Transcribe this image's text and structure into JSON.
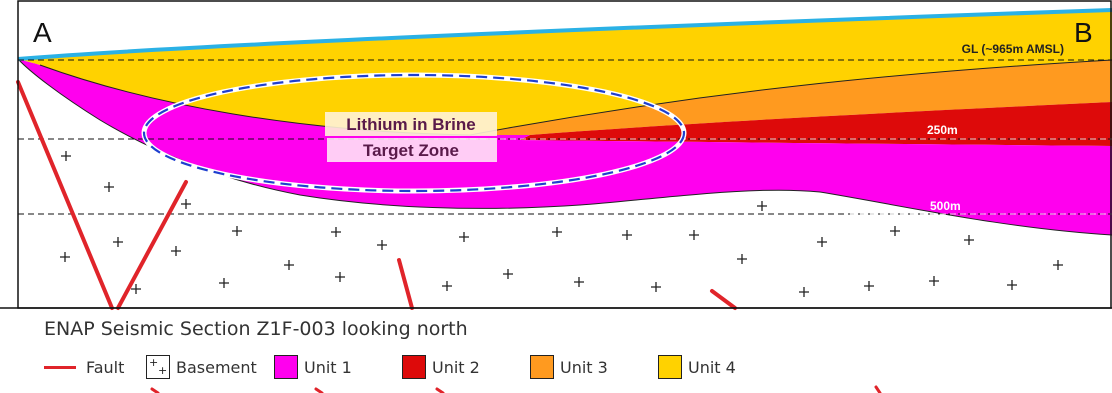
{
  "section": {
    "left_label": "A",
    "right_label": "B",
    "ground_level_label": "GL (~965m AMSL)",
    "depth_250_label": "250m",
    "depth_500_label": "500m",
    "target_zone_line1": "Lithium in Brine",
    "target_zone_line2": "Target Zone"
  },
  "caption": "ENAP Seismic Section Z1F-003 looking north",
  "legend": {
    "fault": "Fault",
    "basement": "Basement",
    "unit1": "Unit 1",
    "unit2": "Unit 2",
    "unit3": "Unit 3",
    "unit4": "Unit 4"
  },
  "colors": {
    "fault": "#e0242a",
    "unit1": "#ff00ee",
    "unit2": "#dd0a0a",
    "unit3": "#ff9a1f",
    "unit4": "#ffd200",
    "ground": "#2bb1e5",
    "target_outline": "#1f3fcf"
  }
}
